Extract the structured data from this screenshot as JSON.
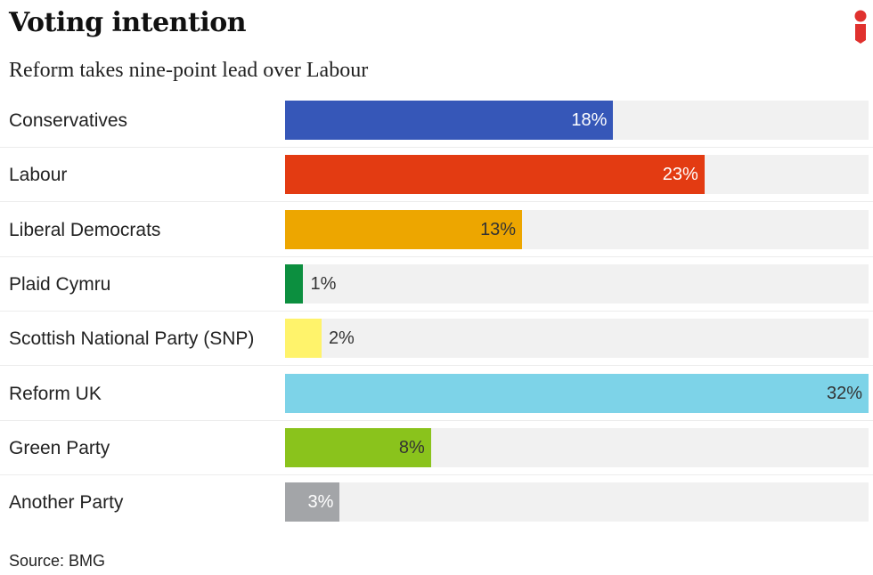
{
  "chart_data": {
    "type": "bar",
    "orientation": "horizontal",
    "title": "Voting intention",
    "subtitle": "Reform takes nine-point lead over Labour",
    "categories": [
      "Conservatives",
      "Labour",
      "Liberal Democrats",
      "Plaid Cymru",
      "Scottish National Party (SNP)",
      "Reform UK",
      "Green Party",
      "Another Party"
    ],
    "values": [
      18,
      23,
      13,
      1,
      2,
      32,
      8,
      3
    ],
    "value_labels": [
      "18%",
      "23%",
      "13%",
      "1%",
      "2%",
      "32%",
      "8%",
      "3%"
    ],
    "colors": [
      "#3657b8",
      "#e33b12",
      "#eda600",
      "#0c8f3f",
      "#fff36b",
      "#7dd3e8",
      "#8ac31c",
      "#a3a5a8"
    ],
    "label_colors": [
      "#ffffff",
      "#ffffff",
      "#333333",
      "#333333",
      "#333333",
      "#333333",
      "#333333",
      "#ffffff"
    ],
    "xlim": [
      0,
      32
    ],
    "grid": false,
    "source": "Source: BMG"
  },
  "brand": {
    "logo": "i",
    "logo_color": "#e0312e"
  }
}
